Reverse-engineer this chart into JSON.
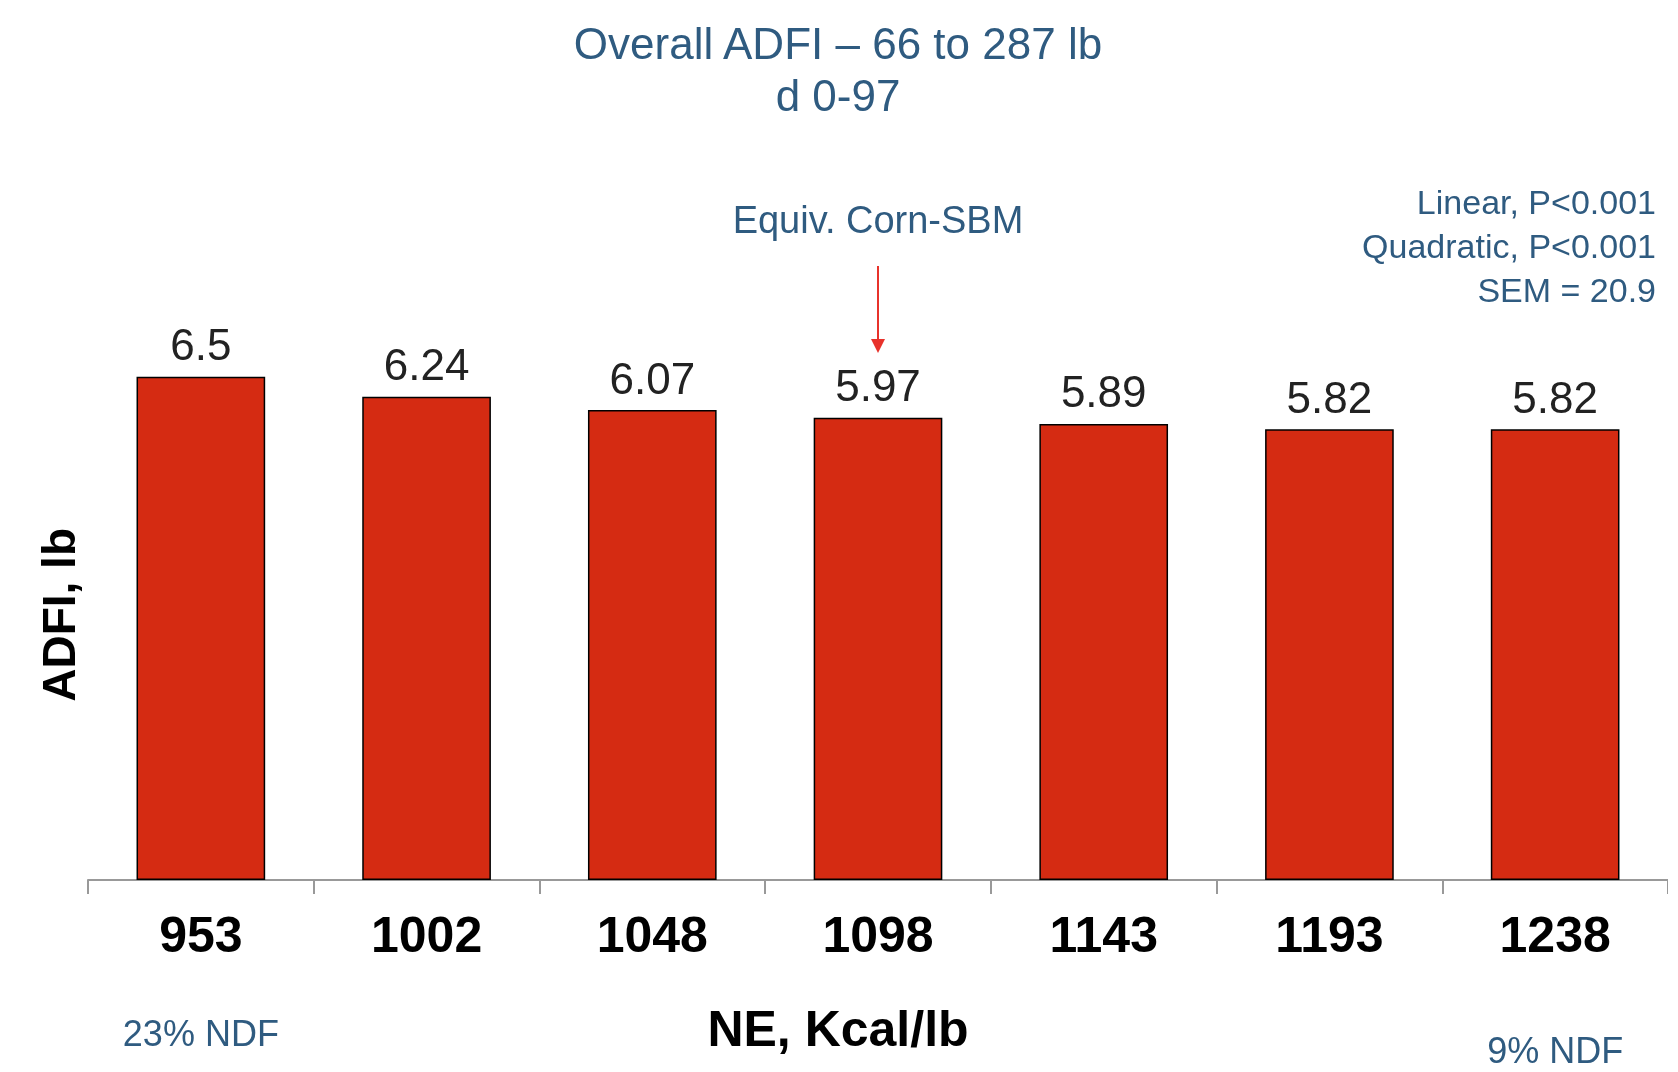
{
  "chart_data": {
    "type": "bar",
    "title": "Overall ADFI – 66 to 287 lb",
    "subtitle": "d 0-97",
    "xlabel": "NE, Kcal/lb",
    "ylabel": "ADFI, lb",
    "categories": [
      "953",
      "1002",
      "1048",
      "1098",
      "1143",
      "1193",
      "1238"
    ],
    "values": [
      6.5,
      6.24,
      6.07,
      5.97,
      5.89,
      5.82,
      5.82
    ],
    "color": "#d52b12",
    "data_labels": true,
    "grid": false,
    "tick_labels": "x",
    "annotations": [
      "Equiv. Corn-SBM",
      "Linear, P<0.001\nQuadratic, P<0.001\nSEM = 20.9",
      "23% NDF",
      "9% NDF"
    ]
  }
}
